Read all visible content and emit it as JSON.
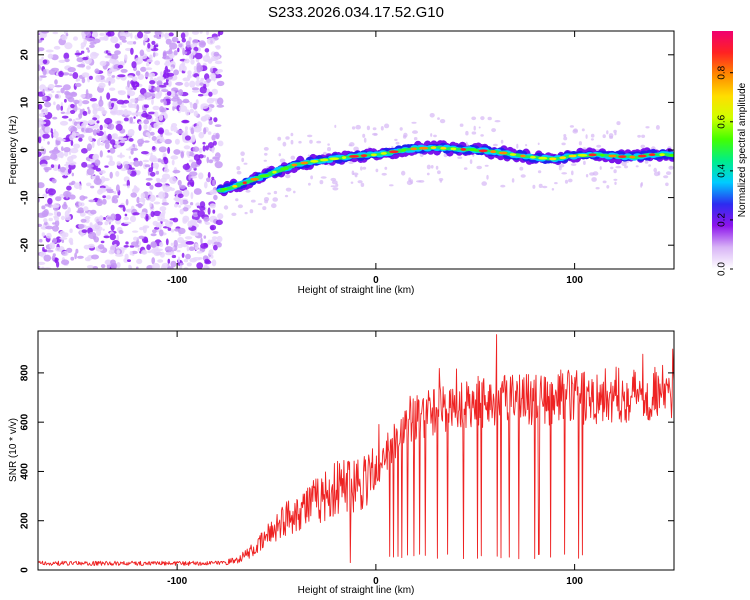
{
  "title": "S233.2026.034.17.52.G10",
  "chart_data": [
    {
      "type": "heatmap",
      "name": "spectrogram",
      "xlabel": "Height of straight line (km)",
      "ylabel": "Frequency (Hz)",
      "xlim": [
        -170,
        150
      ],
      "ylim": [
        -25,
        25
      ],
      "xticks": [
        -100,
        0,
        100
      ],
      "xtick_labels": [
        "-100",
        "0",
        "100"
      ],
      "yticks": [
        -20,
        -10,
        0,
        10,
        20
      ],
      "ytick_labels": [
        "-20",
        "-10",
        "0",
        "10",
        "20"
      ],
      "noise_region_km": [
        -170,
        -78
      ],
      "signal_track": {
        "x": [
          -78,
          -70,
          -60,
          -50,
          -40,
          -30,
          -20,
          -10,
          0,
          10,
          20,
          30,
          40,
          50,
          60,
          70,
          80,
          90,
          100,
          110,
          120,
          130,
          140,
          150
        ],
        "frequency": [
          -8.5,
          -7.5,
          -6,
          -4.5,
          -3,
          -2.3,
          -1.8,
          -1.3,
          -1,
          -0.3,
          0.3,
          0.5,
          0.2,
          0,
          -0.4,
          -1,
          -1.6,
          -1.9,
          -1.2,
          -1,
          -1.3,
          -1.5,
          -0.9,
          -1.1
        ]
      },
      "colorbar": {
        "label": "Normalized spectral amplitude",
        "range": [
          0,
          0.97
        ],
        "ticks": [
          0.0,
          0.2,
          0.4,
          0.6,
          0.8
        ],
        "tick_labels": [
          "0.0",
          "0.2",
          "0.4",
          "0.6",
          "0.8"
        ],
        "colors": [
          "#ffffff",
          "#d8b4f6",
          "#8d14ec",
          "#2c2cf0",
          "#00ccff",
          "#00ee88",
          "#44ff00",
          "#d2ff00",
          "#ffdd00",
          "#ff8800",
          "#ff2222",
          "#f00070"
        ]
      }
    },
    {
      "type": "line",
      "name": "snr",
      "xlabel": "Height of straight line (km)",
      "ylabel": "SNR (10 * v/v)",
      "xlim": [
        -170,
        150
      ],
      "ylim": [
        0,
        970
      ],
      "xticks": [
        -100,
        0,
        100
      ],
      "xtick_labels": [
        "-100",
        "0",
        "100"
      ],
      "yticks": [
        0,
        200,
        400,
        600,
        800
      ],
      "ytick_labels": [
        "0",
        "200",
        "400",
        "600",
        "800"
      ],
      "color": "#ee2222",
      "trend": {
        "x": [
          -170,
          -80,
          -70,
          -60,
          -50,
          -40,
          -30,
          -20,
          -10,
          0,
          5,
          10,
          15,
          20,
          30,
          40,
          60,
          80,
          100,
          120,
          150
        ],
        "y": [
          22,
          25,
          40,
          90,
          180,
          240,
          280,
          330,
          360,
          400,
          460,
          530,
          580,
          620,
          650,
          680,
          690,
          700,
          700,
          710,
          720
        ]
      },
      "dropouts": [
        7,
        9,
        11,
        13,
        16,
        19,
        22,
        25,
        31,
        36,
        44,
        51,
        53,
        61,
        63,
        67,
        72,
        80,
        82,
        88,
        95,
        102,
        104
      ]
    }
  ]
}
